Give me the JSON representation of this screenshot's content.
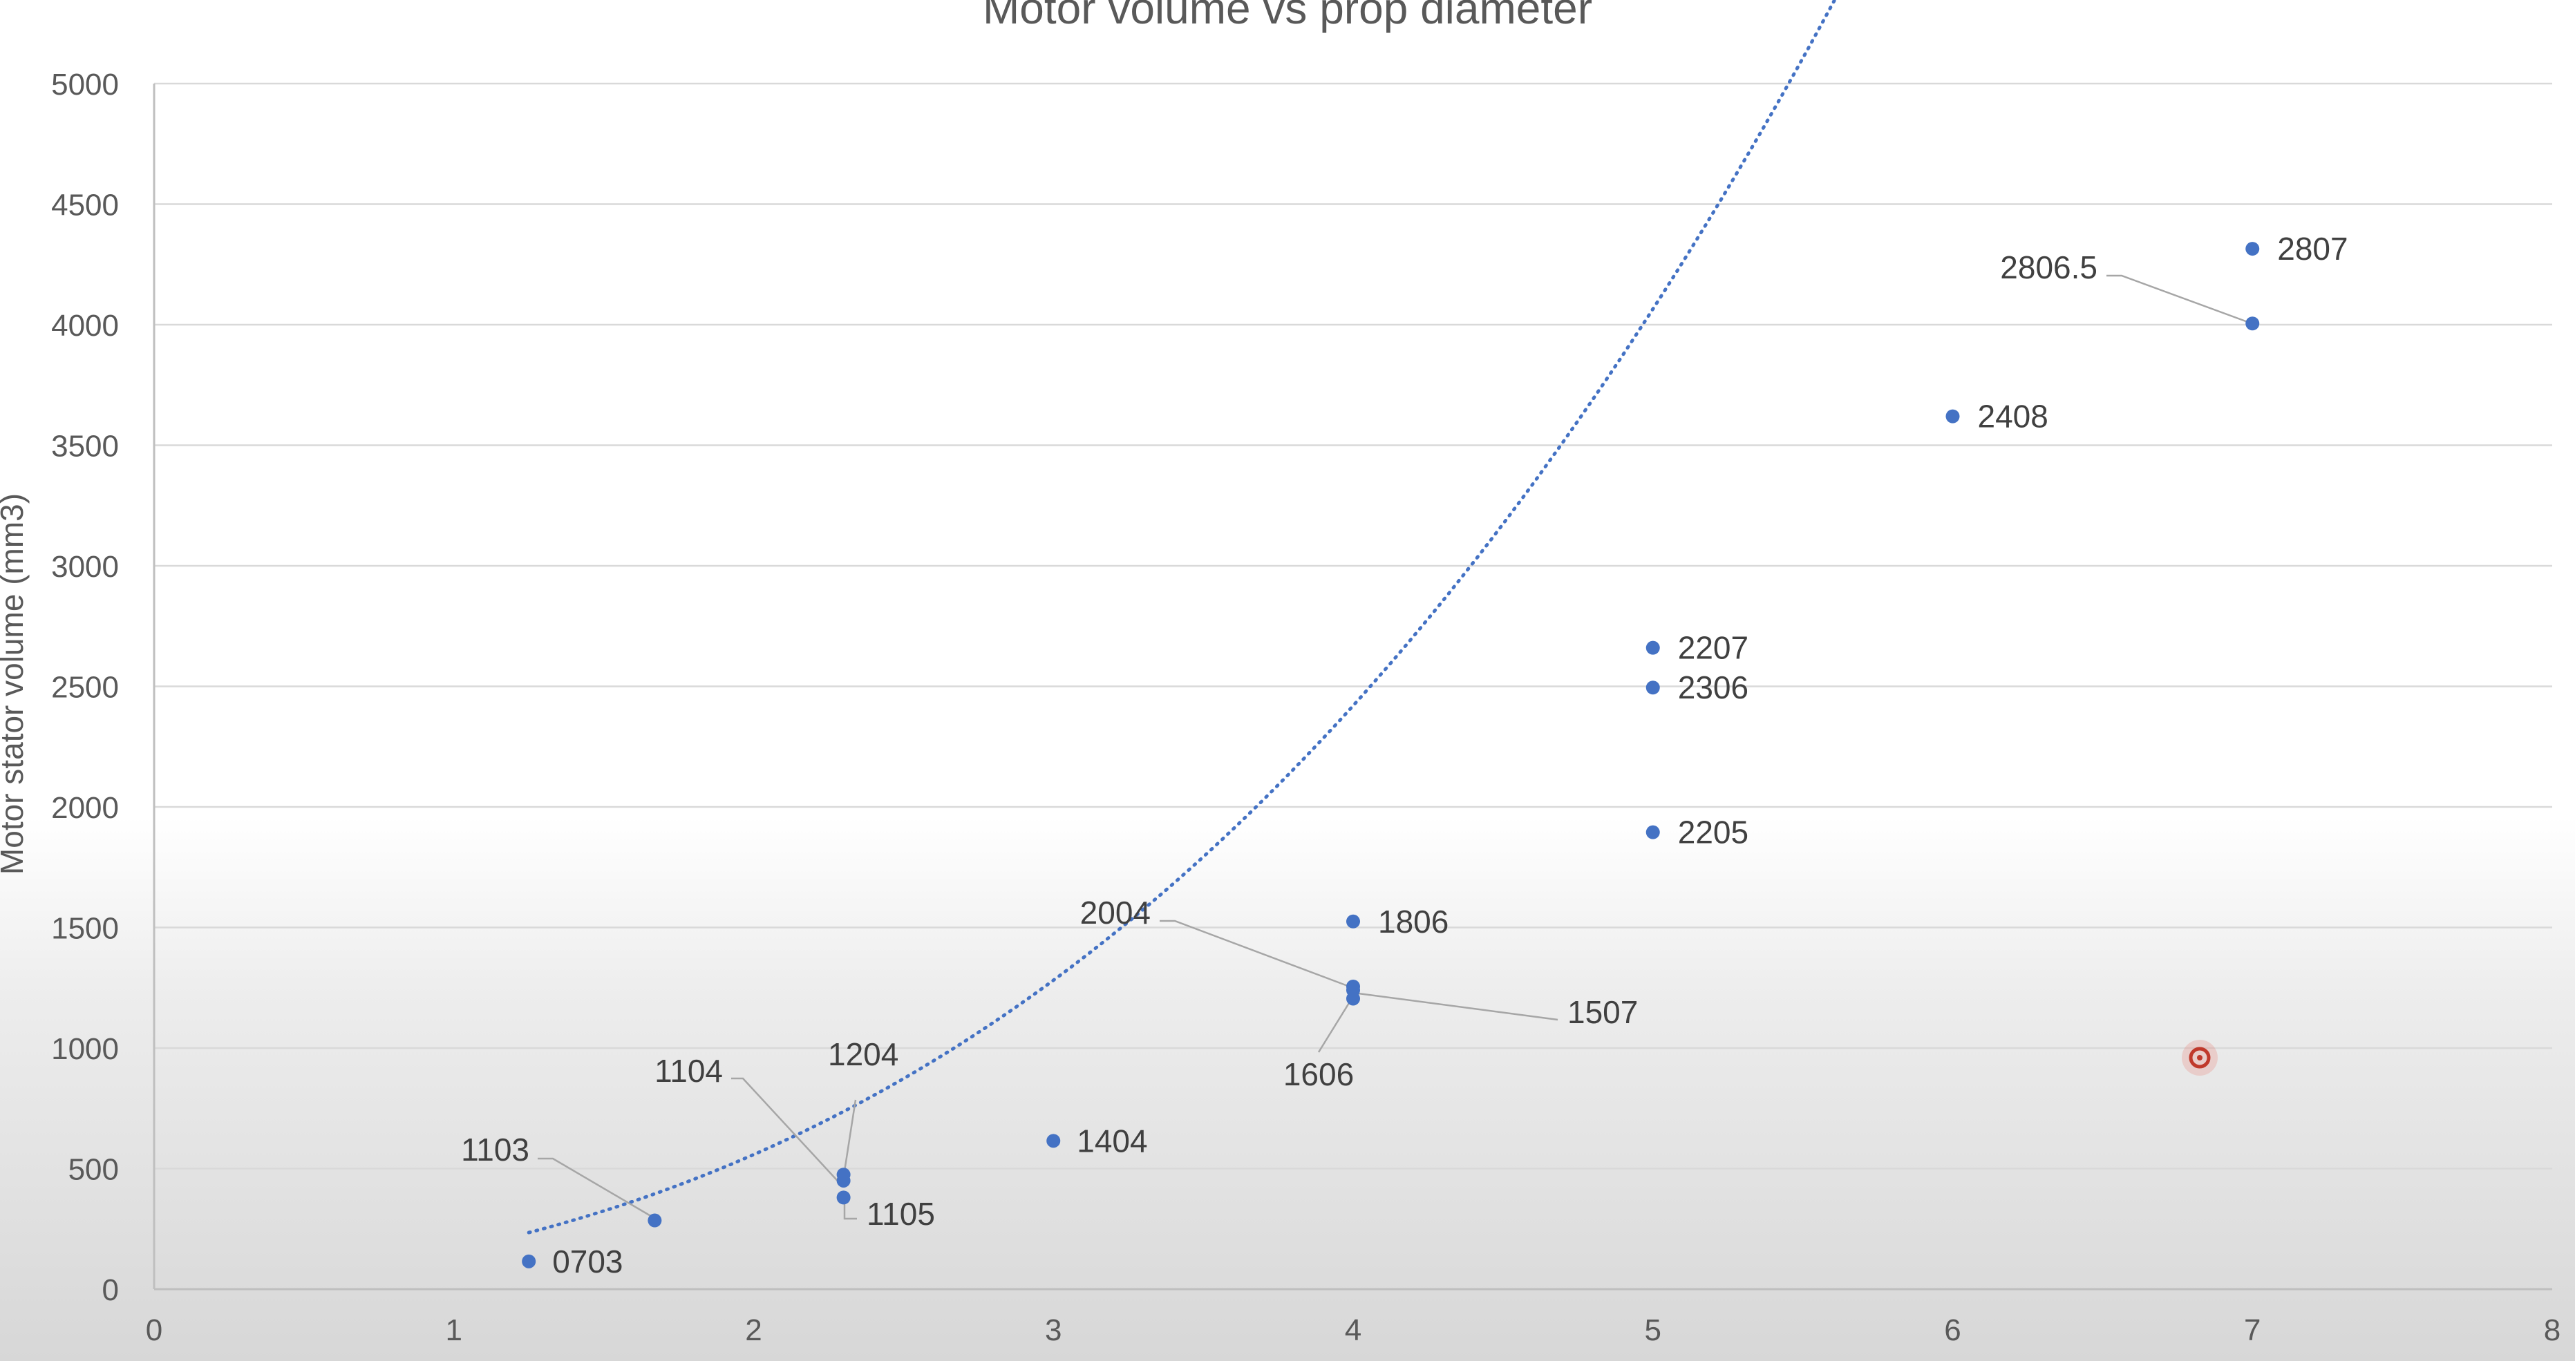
{
  "chart_data": {
    "type": "scatter",
    "title": "Motor volume vs prop diameter",
    "xlabel": "",
    "ylabel": "Motor stator volume (mm3)",
    "xlim": [
      0,
      8
    ],
    "ylim": [
      0,
      5000
    ],
    "x_ticks": [
      "0",
      "1",
      "2",
      "3",
      "4",
      "5",
      "6",
      "7",
      "8"
    ],
    "y_ticks": [
      "0",
      "500",
      "1000",
      "1500",
      "2000",
      "2500",
      "3000",
      "3500",
      "4000",
      "4500",
      "5000"
    ],
    "grid": "horizontal",
    "series": [
      {
        "color": "#4472c4",
        "points": [
          {
            "label": "0703",
            "x": 1.25,
            "y": 115
          },
          {
            "label": "1103",
            "x": 1.67,
            "y": 285
          },
          {
            "label": "1104",
            "x": 2.3,
            "y": 450
          },
          {
            "label": "1204",
            "x": 2.3,
            "y": 475
          },
          {
            "label": "1105",
            "x": 2.3,
            "y": 380
          },
          {
            "label": "1404",
            "x": 3.0,
            "y": 615
          },
          {
            "label": "1806",
            "x": 4.0,
            "y": 1525
          },
          {
            "label": "2004",
            "x": 4.0,
            "y": 1255
          },
          {
            "label": "1507",
            "x": 4.0,
            "y": 1240
          },
          {
            "label": "1606",
            "x": 4.0,
            "y": 1205
          },
          {
            "label": "2205",
            "x": 5.0,
            "y": 1895
          },
          {
            "label": "2306",
            "x": 5.0,
            "y": 2495
          },
          {
            "label": "2207",
            "x": 5.0,
            "y": 2660
          },
          {
            "label": "2408",
            "x": 6.0,
            "y": 3620
          },
          {
            "label": "2806.5",
            "x": 7.0,
            "y": 4005
          },
          {
            "label": "2807",
            "x": 7.0,
            "y": 4315
          }
        ]
      }
    ],
    "trendline": {
      "type": "polynomial",
      "style": "dotted",
      "color": "#4472c4",
      "x_from": 1.25,
      "x_to": 7.0,
      "coefficients": [
        15,
        73,
        73
      ]
    },
    "cursor_color": "#c0392b"
  }
}
